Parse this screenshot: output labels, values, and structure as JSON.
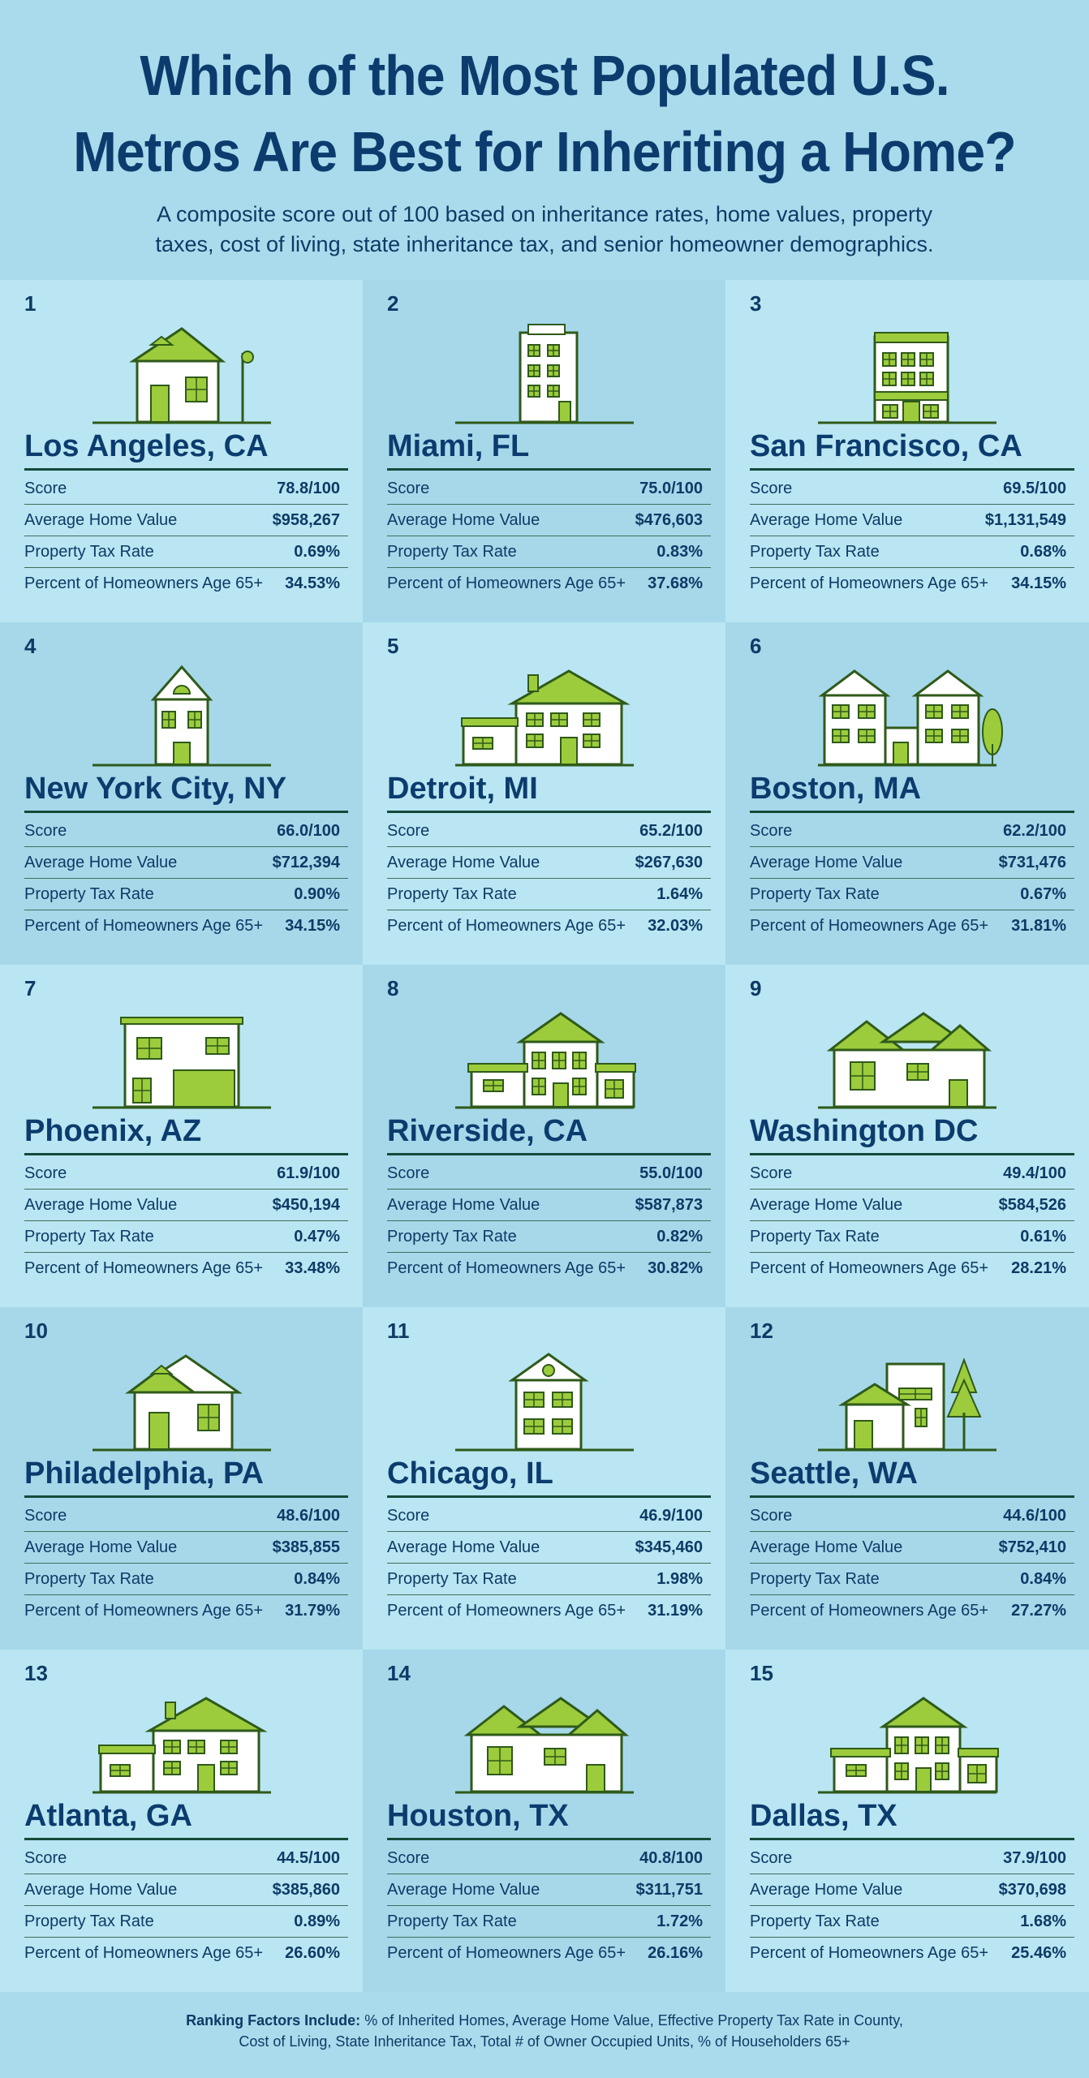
{
  "header": {
    "title_line1": "Which of the Most Populated U.S.",
    "title_line2": "Metros Are Best for Inheriting a Home?",
    "subtitle": "A composite score out of 100 based on inheritance rates, home values, property taxes, cost of living, state inheritance tax, and senior homeowner demographics."
  },
  "labels": {
    "score": "Score",
    "home_value": "Average Home Value",
    "tax_rate": "Property Tax Rate",
    "age65": "Percent of Homeowners Age 65+"
  },
  "colors": {
    "green": "#9ccc3c",
    "dark_green": "#2f5a1a",
    "navy": "#0c3c6e"
  },
  "metros": [
    {
      "rank": "1",
      "city": "Los Angeles, CA",
      "score": "78.8/100",
      "home_value": "$958,267",
      "tax_rate": "0.69%",
      "age65": "34.53%",
      "icon": "house-with-lamp-icon"
    },
    {
      "rank": "2",
      "city": "Miami, FL",
      "score": "75.0/100",
      "home_value": "$476,603",
      "tax_rate": "0.83%",
      "age65": "37.68%",
      "icon": "apartment-tower-icon"
    },
    {
      "rank": "3",
      "city": "San Francisco, CA",
      "score": "69.5/100",
      "home_value": "$1,131,549",
      "tax_rate": "0.68%",
      "age65": "34.15%",
      "icon": "victorian-building-icon"
    },
    {
      "rank": "4",
      "city": "New York City, NY",
      "score": "66.0/100",
      "home_value": "$712,394",
      "tax_rate": "0.90%",
      "age65": "34.15%",
      "icon": "narrow-townhouse-icon"
    },
    {
      "rank": "5",
      "city": "Detroit, MI",
      "score": "65.2/100",
      "home_value": "$267,630",
      "tax_rate": "1.64%",
      "age65": "32.03%",
      "icon": "large-house-icon"
    },
    {
      "rank": "6",
      "city": "Boston, MA",
      "score": "62.2/100",
      "home_value": "$731,476",
      "tax_rate": "0.67%",
      "age65": "31.81%",
      "icon": "twin-houses-icon"
    },
    {
      "rank": "7",
      "city": "Phoenix, AZ",
      "score": "61.9/100",
      "home_value": "$450,194",
      "tax_rate": "0.47%",
      "age65": "33.48%",
      "icon": "modern-house-icon"
    },
    {
      "rank": "8",
      "city": "Riverside, CA",
      "score": "55.0/100",
      "home_value": "$587,873",
      "tax_rate": "0.82%",
      "age65": "30.82%",
      "icon": "colonial-house-icon"
    },
    {
      "rank": "9",
      "city": "Washington DC",
      "score": "49.4/100",
      "home_value": "$584,526",
      "tax_rate": "0.61%",
      "age65": "28.21%",
      "icon": "ranch-house-icon"
    },
    {
      "rank": "10",
      "city": "Philadelphia, PA",
      "score": "48.6/100",
      "home_value": "$385,855",
      "tax_rate": "0.84%",
      "age65": "31.79%",
      "icon": "cottage-house-icon"
    },
    {
      "rank": "11",
      "city": "Chicago, IL",
      "score": "46.9/100",
      "home_value": "$345,460",
      "tax_rate": "1.98%",
      "age65": "31.19%",
      "icon": "small-house-icon"
    },
    {
      "rank": "12",
      "city": "Seattle, WA",
      "score": "44.6/100",
      "home_value": "$752,410",
      "tax_rate": "0.84%",
      "age65": "27.27%",
      "icon": "house-with-tree-icon"
    },
    {
      "rank": "13",
      "city": "Atlanta, GA",
      "score": "44.5/100",
      "home_value": "$385,860",
      "tax_rate": "0.89%",
      "age65": "26.60%",
      "icon": "large-house-icon"
    },
    {
      "rank": "14",
      "city": "Houston, TX",
      "score": "40.8/100",
      "home_value": "$311,751",
      "tax_rate": "1.72%",
      "age65": "26.16%",
      "icon": "ranch-house-icon"
    },
    {
      "rank": "15",
      "city": "Dallas, TX",
      "score": "37.9/100",
      "home_value": "$370,698",
      "tax_rate": "1.68%",
      "age65": "25.46%",
      "icon": "colonial-house-icon"
    }
  ],
  "footer": {
    "lead": "Ranking Factors Include:",
    "line1": "% of Inherited Homes, Average Home Value, Effective Property Tax Rate in County,",
    "line2": "Cost of Living, State Inheritance Tax, Total # of Owner Occupied Units, % of Householders 65+"
  }
}
